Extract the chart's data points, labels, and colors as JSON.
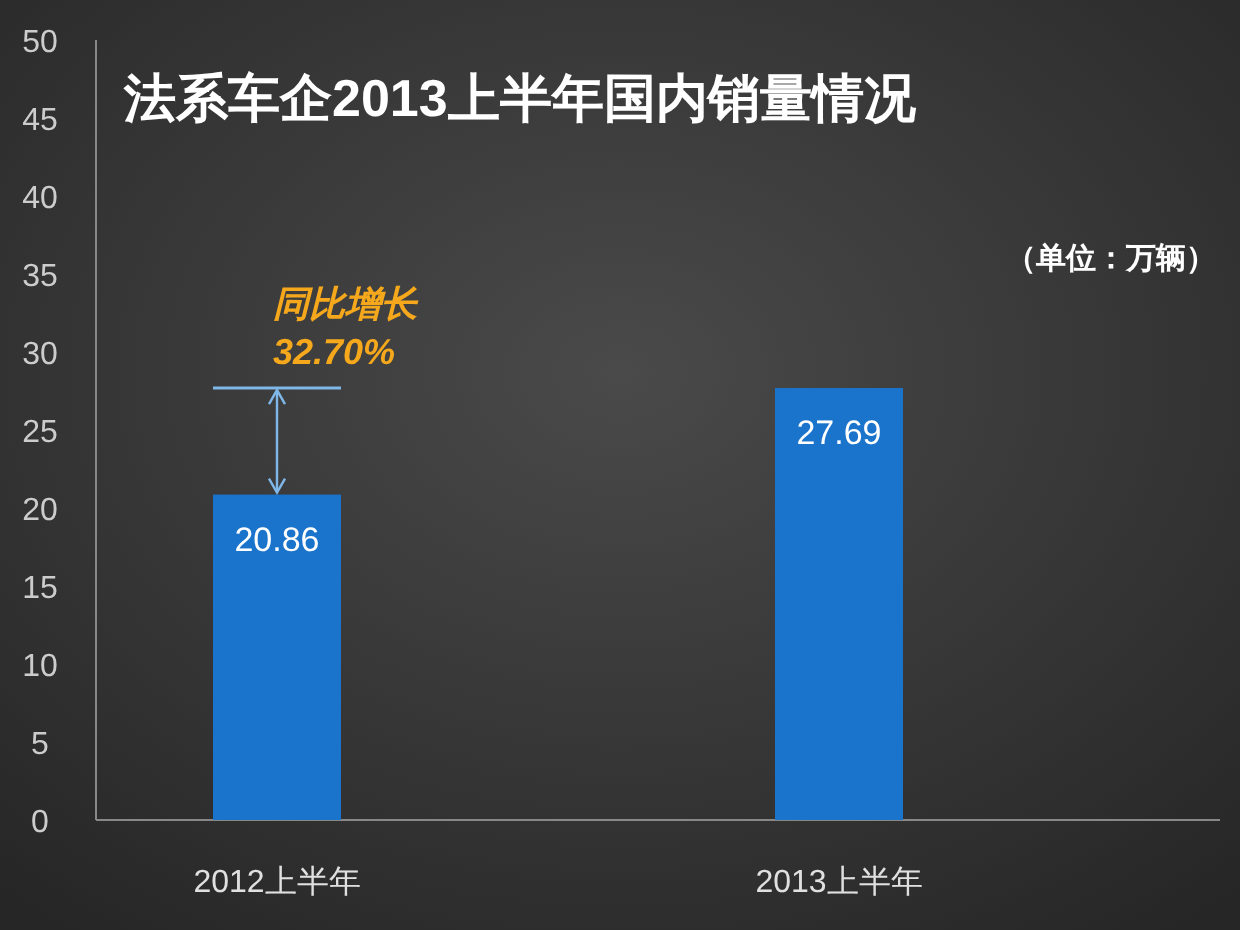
{
  "chart_data": {
    "type": "bar",
    "title": "法系车企2013上半年国内销量情况",
    "categories": [
      "2012上半年",
      "2013上半年"
    ],
    "values": [
      20.86,
      27.69
    ],
    "color": "#1a74cc",
    "ylim": [
      0,
      50
    ],
    "yticks": [
      0,
      5,
      10,
      15,
      20,
      25,
      30,
      35,
      40,
      45,
      50
    ],
    "data_labels": true,
    "grid": false,
    "annotations": [
      "同比增长",
      {
        "text": "32.70%",
        "x": "2012上半年",
        "y": 20.86
      },
      "（单位：万辆）"
    ]
  }
}
